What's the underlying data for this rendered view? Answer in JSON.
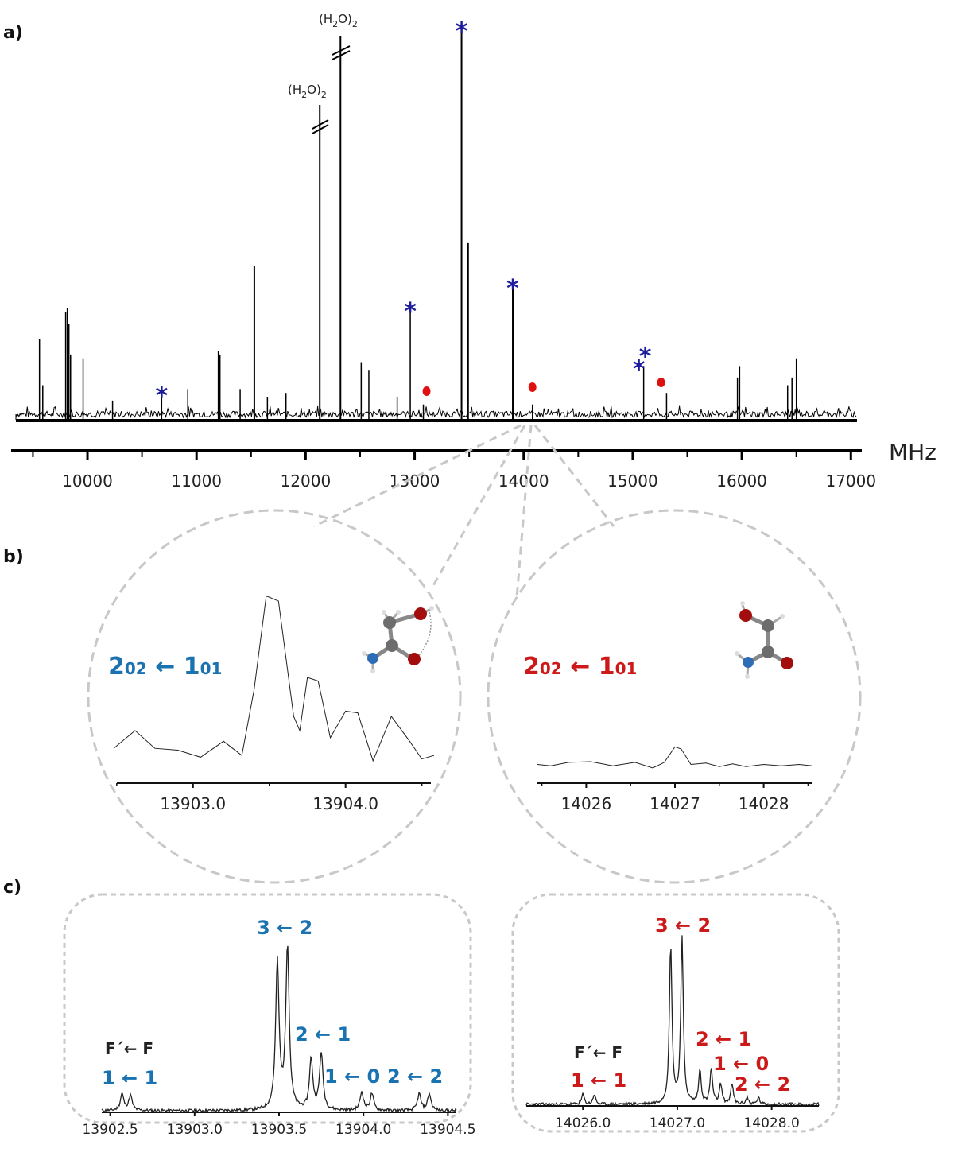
{
  "panel_labels": [
    "a)",
    "b)",
    "c)"
  ],
  "colors": {
    "blue": "#1a72b0",
    "red": "#cc1a1a",
    "star": "#1c1c9c",
    "dashed": "#c8c8c8"
  },
  "chart_data": [
    {
      "id": "a",
      "type": "line",
      "title": "",
      "xlabel": "MHz",
      "xlim": [
        9300,
        17100
      ],
      "xticks": [
        10000,
        11000,
        12000,
        13000,
        14000,
        15000,
        16000,
        17000
      ],
      "tick_labels": [
        "10000",
        "11000",
        "12000",
        "13000",
        "14000",
        "15000",
        "16000",
        "17000"
      ],
      "lines": [
        {
          "x": 9560,
          "h": 0.21
        },
        {
          "x": 9590,
          "h": 0.09
        },
        {
          "x": 9800,
          "h": 0.28
        },
        {
          "x": 9815,
          "h": 0.29
        },
        {
          "x": 9830,
          "h": 0.25
        },
        {
          "x": 9845,
          "h": 0.17
        },
        {
          "x": 9960,
          "h": 0.16
        },
        {
          "x": 10230,
          "h": 0.05
        },
        {
          "x": 10680,
          "h": 0.07
        },
        {
          "x": 10920,
          "h": 0.08
        },
        {
          "x": 11200,
          "h": 0.18
        },
        {
          "x": 11215,
          "h": 0.17
        },
        {
          "x": 11400,
          "h": 0.08
        },
        {
          "x": 11530,
          "h": 0.4
        },
        {
          "x": 11650,
          "h": 0.06
        },
        {
          "x": 11820,
          "h": 0.07
        },
        {
          "x": 12130,
          "h": 0.82
        },
        {
          "x": 12320,
          "h": 1.0
        },
        {
          "x": 12510,
          "h": 0.15
        },
        {
          "x": 12580,
          "h": 0.13
        },
        {
          "x": 12840,
          "h": 0.06
        },
        {
          "x": 12960,
          "h": 0.29
        },
        {
          "x": 13080,
          "h": 0.04
        },
        {
          "x": 13430,
          "h": 1.02
        },
        {
          "x": 13490,
          "h": 0.46
        },
        {
          "x": 13900,
          "h": 0.35
        },
        {
          "x": 14080,
          "h": 0.04
        },
        {
          "x": 15100,
          "h": 0.14
        },
        {
          "x": 15310,
          "h": 0.07
        },
        {
          "x": 15960,
          "h": 0.11
        },
        {
          "x": 15980,
          "h": 0.14
        },
        {
          "x": 16420,
          "h": 0.09
        },
        {
          "x": 16460,
          "h": 0.11
        },
        {
          "x": 16500,
          "h": 0.16
        }
      ],
      "stars_blue": [
        10680,
        12960,
        13430,
        13900,
        15100,
        15100
      ],
      "dots_red": [
        13080,
        14080,
        15260
      ],
      "annotations": [
        "(H2O)2",
        "(H2O)2"
      ],
      "water_label": {
        "base": "(H",
        "sub": "2",
        "mid": "O)",
        "sub2": "2"
      }
    },
    {
      "id": "b_left",
      "type": "line",
      "xlim": [
        13902.48,
        13904.58
      ],
      "xticks": [
        13903.0,
        13904.0
      ],
      "tick_labels": [
        "13903.0",
        "13904.0"
      ],
      "label": {
        "n": "2",
        "sub1": "02",
        "arrow": " ← ",
        "n2": "1",
        "sub2": "01"
      },
      "series": [
        {
          "x": 13902.48,
          "y": 0.12
        },
        {
          "x": 13902.62,
          "y": 0.22
        },
        {
          "x": 13902.75,
          "y": 0.12
        },
        {
          "x": 13902.9,
          "y": 0.11
        },
        {
          "x": 13903.05,
          "y": 0.07
        },
        {
          "x": 13903.2,
          "y": 0.16
        },
        {
          "x": 13903.32,
          "y": 0.08
        },
        {
          "x": 13903.4,
          "y": 0.45
        },
        {
          "x": 13903.48,
          "y": 0.98
        },
        {
          "x": 13903.56,
          "y": 0.95
        },
        {
          "x": 13903.66,
          "y": 0.3
        },
        {
          "x": 13903.7,
          "y": 0.22
        },
        {
          "x": 13903.75,
          "y": 0.52
        },
        {
          "x": 13903.82,
          "y": 0.5
        },
        {
          "x": 13903.9,
          "y": 0.18
        },
        {
          "x": 13904.0,
          "y": 0.33
        },
        {
          "x": 13904.08,
          "y": 0.32
        },
        {
          "x": 13904.18,
          "y": 0.05
        },
        {
          "x": 13904.3,
          "y": 0.3
        },
        {
          "x": 13904.42,
          "y": 0.16
        },
        {
          "x": 13904.5,
          "y": 0.06
        },
        {
          "x": 13904.58,
          "y": 0.08
        }
      ]
    },
    {
      "id": "b_right",
      "type": "line",
      "xlim": [
        14025.45,
        14028.55
      ],
      "xticks": [
        14026,
        14027,
        14028
      ],
      "tick_labels": [
        "14026",
        "14027",
        "14028"
      ],
      "label": {
        "n": "2",
        "sub1": "02",
        "arrow": " ← ",
        "n2": "1",
        "sub2": "01"
      },
      "series": [
        {
          "x": 14025.45,
          "y": 0.05
        },
        {
          "x": 14025.6,
          "y": 0.03
        },
        {
          "x": 14025.8,
          "y": 0.08
        },
        {
          "x": 14026.05,
          "y": 0.09
        },
        {
          "x": 14026.3,
          "y": 0.03
        },
        {
          "x": 14026.55,
          "y": 0.08
        },
        {
          "x": 14026.75,
          "y": 0.0
        },
        {
          "x": 14026.88,
          "y": 0.08
        },
        {
          "x": 14027.0,
          "y": 0.3
        },
        {
          "x": 14027.07,
          "y": 0.27
        },
        {
          "x": 14027.18,
          "y": 0.05
        },
        {
          "x": 14027.35,
          "y": 0.07
        },
        {
          "x": 14027.5,
          "y": 0.02
        },
        {
          "x": 14027.65,
          "y": 0.06
        },
        {
          "x": 14027.8,
          "y": 0.02
        },
        {
          "x": 14028.0,
          "y": 0.05
        },
        {
          "x": 14028.2,
          "y": 0.03
        },
        {
          "x": 14028.4,
          "y": 0.05
        },
        {
          "x": 14028.55,
          "y": 0.03
        }
      ]
    },
    {
      "id": "c_left",
      "type": "line",
      "xlim": [
        13902.45,
        13904.55
      ],
      "xticks": [
        13902.5,
        13903.0,
        13903.5,
        13904.0,
        13904.5
      ],
      "tick_labels": [
        "13902.5",
        "13903.0",
        "13903.5",
        "13904.0",
        "13904.5"
      ],
      "peaks": [
        {
          "x": 13902.57,
          "h": 0.1
        },
        {
          "x": 13902.62,
          "h": 0.09
        },
        {
          "x": 13903.49,
          "h": 0.88
        },
        {
          "x": 13903.55,
          "h": 0.98
        },
        {
          "x": 13903.69,
          "h": 0.3
        },
        {
          "x": 13903.75,
          "h": 0.34
        },
        {
          "x": 13903.99,
          "h": 0.11
        },
        {
          "x": 13904.05,
          "h": 0.1
        },
        {
          "x": 13904.33,
          "h": 0.1
        },
        {
          "x": 13904.39,
          "h": 0.1
        }
      ],
      "labels": [
        "3 ← 2",
        "2 ← 1",
        "1 ← 0",
        "2 ← 2",
        "1 ← 1",
        "F´← F"
      ]
    },
    {
      "id": "c_right",
      "type": "line",
      "xlim": [
        14025.4,
        14028.5
      ],
      "xticks": [
        14026.0,
        14027.0,
        14028.0
      ],
      "tick_labels": [
        "14026.0",
        "14027.0",
        "14028.0"
      ],
      "peaks": [
        {
          "x": 14026.0,
          "h": 0.06
        },
        {
          "x": 14026.12,
          "h": 0.06
        },
        {
          "x": 14026.93,
          "h": 0.96
        },
        {
          "x": 14027.05,
          "h": 1.0
        },
        {
          "x": 14027.24,
          "h": 0.2
        },
        {
          "x": 14027.36,
          "h": 0.21
        },
        {
          "x": 14027.46,
          "h": 0.12
        },
        {
          "x": 14027.58,
          "h": 0.12
        },
        {
          "x": 14027.74,
          "h": 0.04
        },
        {
          "x": 14027.86,
          "h": 0.04
        }
      ],
      "labels": [
        "3 ← 2",
        "2 ← 1",
        "1 ← 0",
        "2 ← 2",
        "1 ← 1",
        "F´← F"
      ]
    }
  ]
}
